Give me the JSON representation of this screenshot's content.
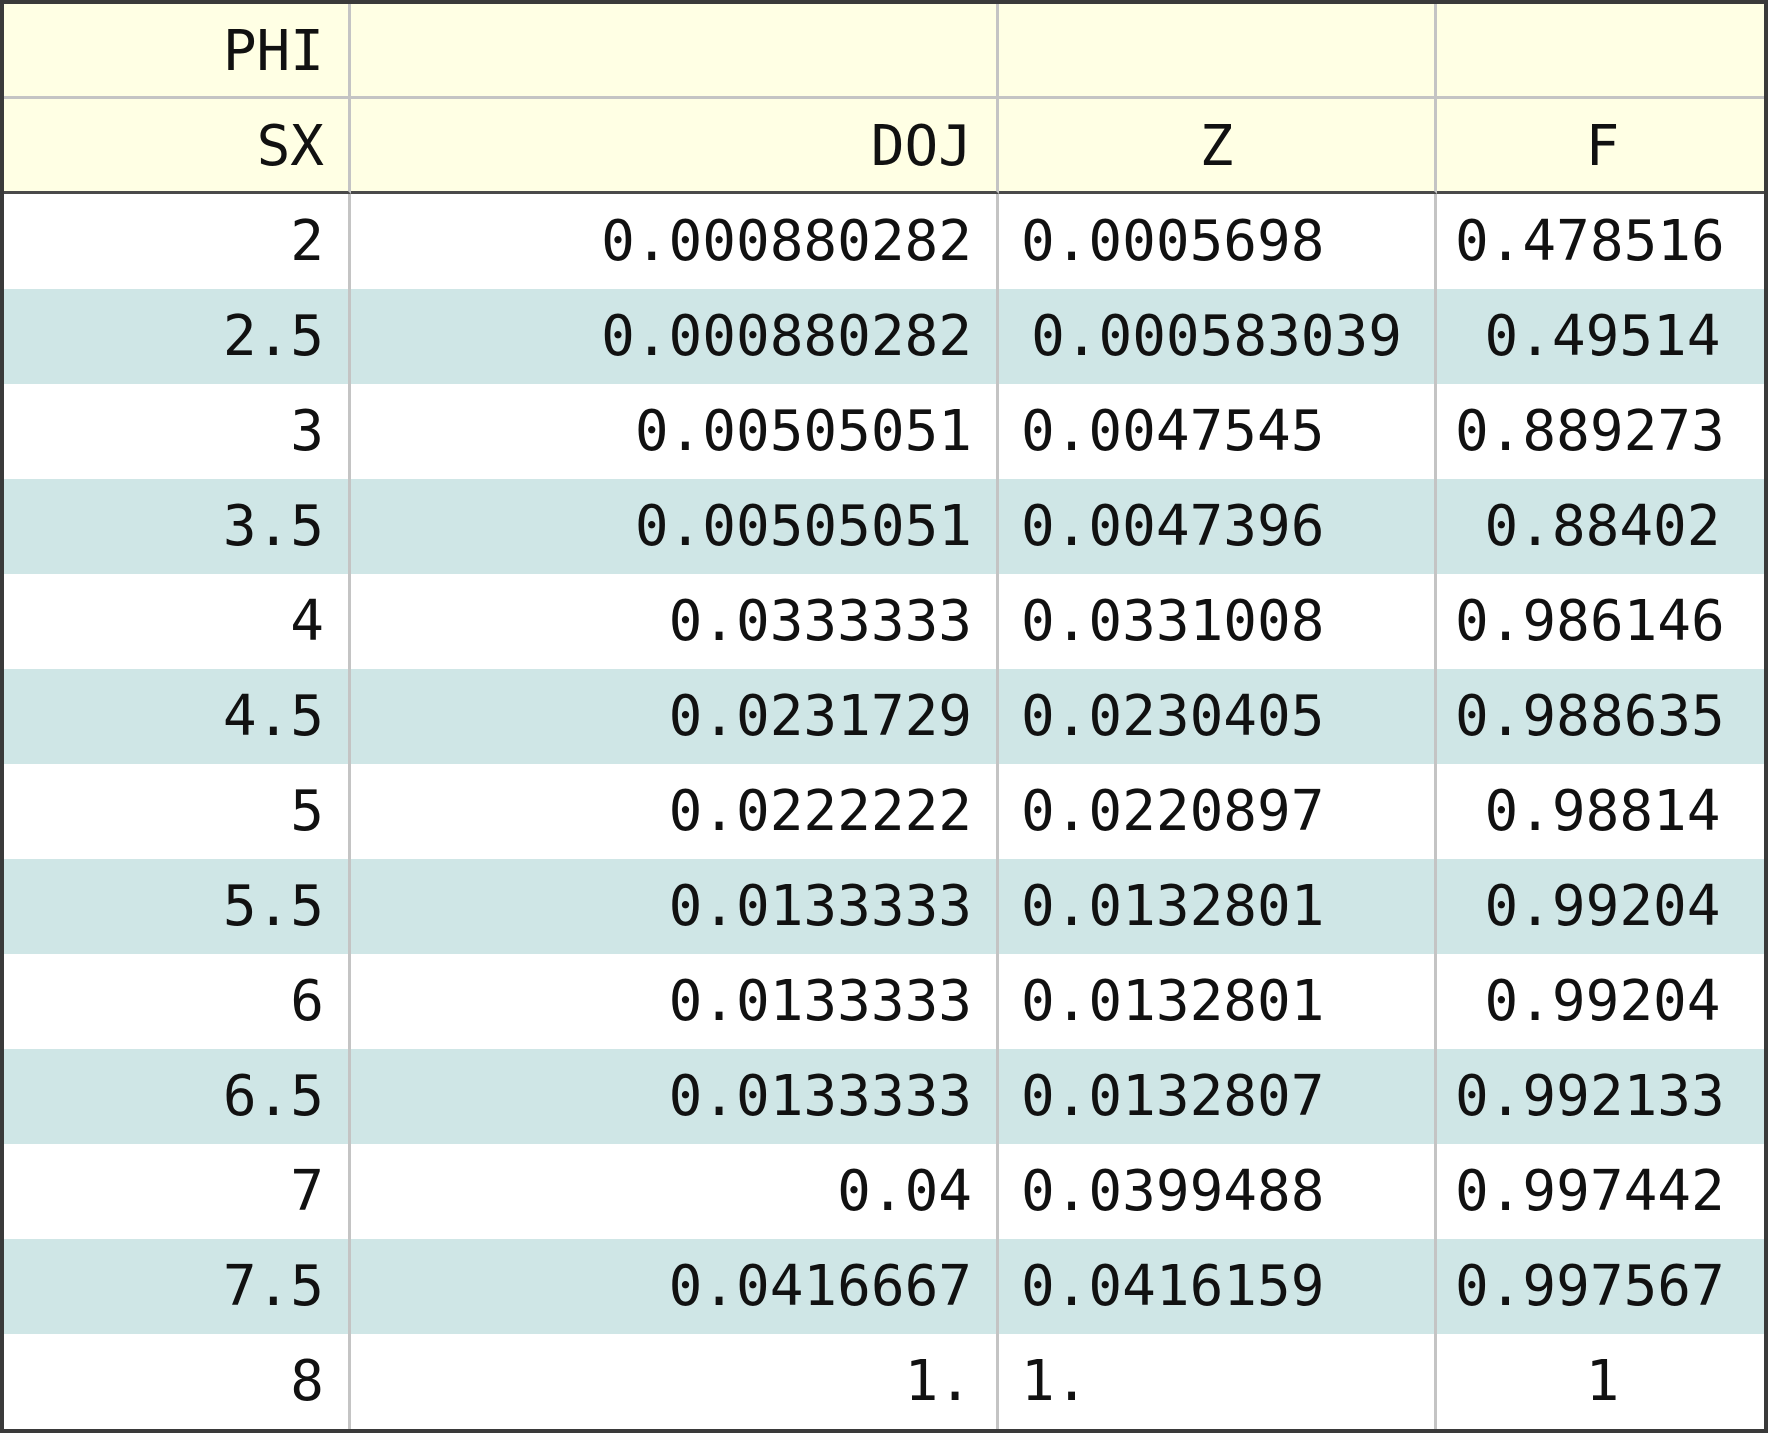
{
  "table": {
    "header_row1": [
      "PHI",
      "",
      "",
      ""
    ],
    "header_row2": [
      "SX",
      "DOJ",
      "Z",
      "F"
    ],
    "rows": [
      [
        "2",
        "0.000880282",
        "0.0005698",
        "0.478516"
      ],
      [
        "2.5",
        "0.000880282",
        "0.000583039",
        "0.49514"
      ],
      [
        "3",
        "0.00505051",
        "0.0047545",
        "0.889273"
      ],
      [
        "3.5",
        "0.00505051",
        "0.0047396",
        "0.88402"
      ],
      [
        "4",
        "0.0333333",
        "0.0331008",
        "0.986146"
      ],
      [
        "4.5",
        "0.0231729",
        "0.0230405",
        "0.988635"
      ],
      [
        "5",
        "0.0222222",
        "0.0220897",
        "0.98814"
      ],
      [
        "5.5",
        "0.0133333",
        "0.0132801",
        "0.99204"
      ],
      [
        "6",
        "0.0133333",
        "0.0132801",
        "0.99204"
      ],
      [
        "6.5",
        "0.0133333",
        "0.0132807",
        "0.992133"
      ],
      [
        "7",
        "0.04",
        "0.0399488",
        "0.997442"
      ],
      [
        "7.5",
        "0.0416667",
        "0.0416159",
        "0.997567"
      ],
      [
        "8",
        "1.",
        "1.",
        "1"
      ]
    ]
  },
  "colors": {
    "header_background": "#ffffe4",
    "alternate_row_background": "#cfe6e6",
    "row_background": "#ffffff",
    "outer_border": "#3a3a3a",
    "inner_border": "#c4c4c4"
  }
}
